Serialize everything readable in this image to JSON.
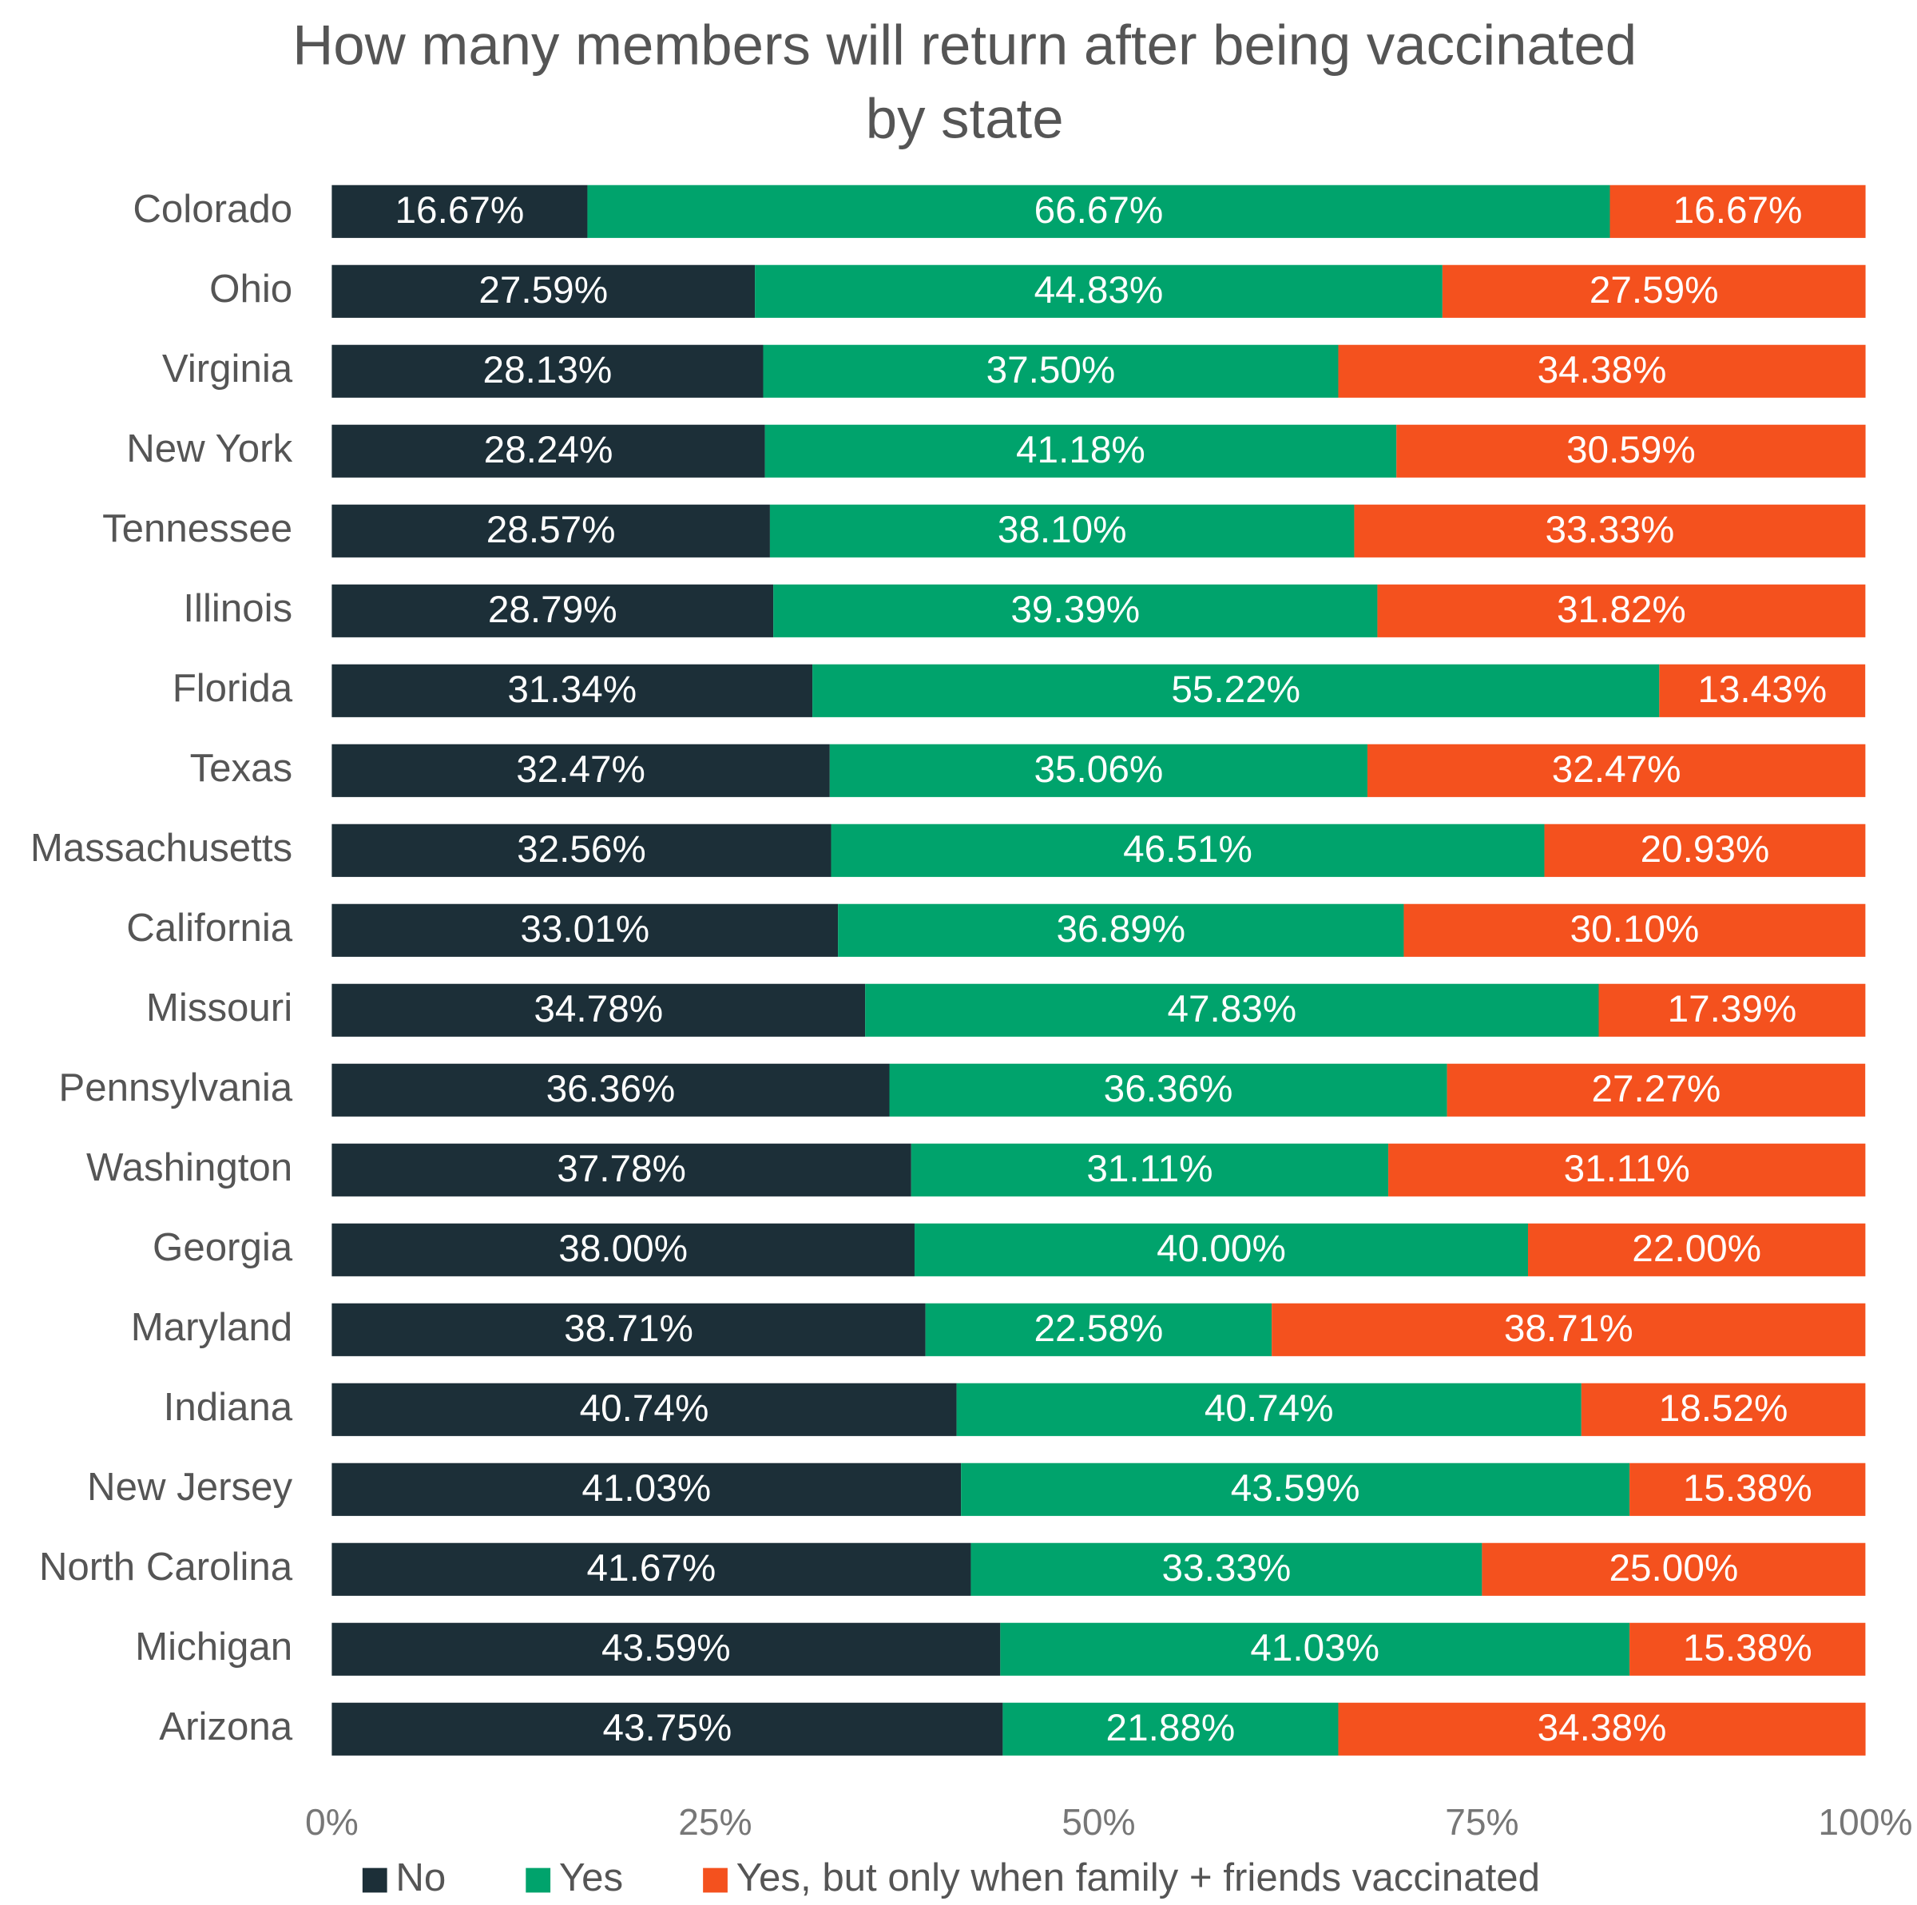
{
  "chart_data": {
    "type": "stacked-bar-horizontal",
    "title": [
      "How many members will return after being vaccinated",
      "by state"
    ],
    "categories": [
      "Colorado",
      "Ohio",
      "Virginia",
      "New York",
      "Tennessee",
      "Illinois",
      "Florida",
      "Texas",
      "Massachusetts",
      "California",
      "Missouri",
      "Pennsylvania",
      "Washington",
      "Georgia",
      "Maryland",
      "Indiana",
      "New Jersey",
      "North Carolina",
      "Michigan",
      "Arizona"
    ],
    "series": [
      {
        "name": "No",
        "color": "#1c2f38",
        "values": [
          16.67,
          27.59,
          28.13,
          28.24,
          28.57,
          28.79,
          31.34,
          32.47,
          32.56,
          33.01,
          34.78,
          36.36,
          37.78,
          38.0,
          38.71,
          40.74,
          41.03,
          41.67,
          43.59,
          43.75
        ],
        "value_labels": [
          "16.67%",
          "27.59%",
          "28.13%",
          "28.24%",
          "28.57%",
          "28.79%",
          "31.34%",
          "32.47%",
          "32.56%",
          "33.01%",
          "34.78%",
          "36.36%",
          "37.78%",
          "38.00%",
          "38.71%",
          "40.74%",
          "41.03%",
          "41.67%",
          "43.59%",
          "43.75%"
        ]
      },
      {
        "name": "Yes",
        "color": "#00a36c",
        "values": [
          66.67,
          44.83,
          37.5,
          41.18,
          38.1,
          39.39,
          55.22,
          35.06,
          46.51,
          36.89,
          47.83,
          36.36,
          31.11,
          40.0,
          22.58,
          40.74,
          43.59,
          33.33,
          41.03,
          21.88
        ],
        "value_labels": [
          "66.67%",
          "44.83%",
          "37.50%",
          "41.18%",
          "38.10%",
          "39.39%",
          "55.22%",
          "35.06%",
          "46.51%",
          "36.89%",
          "47.83%",
          "36.36%",
          "31.11%",
          "40.00%",
          "22.58%",
          "40.74%",
          "43.59%",
          "33.33%",
          "41.03%",
          "21.88%"
        ]
      },
      {
        "name": "Yes, but only when family + friends vaccinated",
        "color": "#f4511e",
        "values": [
          16.67,
          27.59,
          34.38,
          30.59,
          33.33,
          31.82,
          13.43,
          32.47,
          20.93,
          30.1,
          17.39,
          27.27,
          31.11,
          22.0,
          38.71,
          18.52,
          15.38,
          25.0,
          15.38,
          34.38
        ],
        "value_labels": [
          "16.67%",
          "27.59%",
          "34.38%",
          "30.59%",
          "33.33%",
          "31.82%",
          "13.43%",
          "32.47%",
          "20.93%",
          "30.10%",
          "17.39%",
          "27.27%",
          "31.11%",
          "22.00%",
          "38.71%",
          "18.52%",
          "15.38%",
          "25.00%",
          "15.38%",
          "34.38%"
        ]
      }
    ],
    "xlim": [
      0,
      100
    ],
    "xticks": [
      {
        "value": 0,
        "label": "0%"
      },
      {
        "value": 25,
        "label": "25%"
      },
      {
        "value": 50,
        "label": "50%"
      },
      {
        "value": 75,
        "label": "75%"
      },
      {
        "value": 100,
        "label": "100%"
      }
    ],
    "legend": "bottom"
  }
}
